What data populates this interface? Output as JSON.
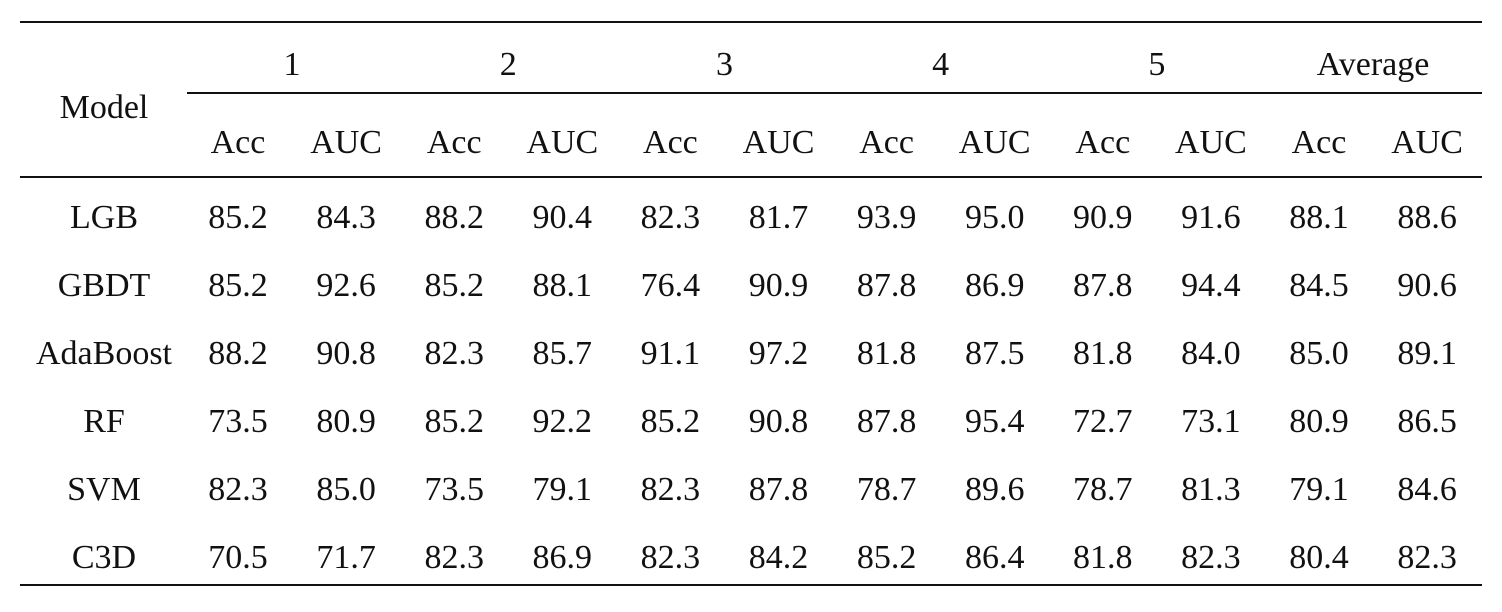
{
  "table": {
    "header": {
      "model": "Model",
      "groups": [
        "1",
        "2",
        "3",
        "4",
        "5",
        "Average"
      ],
      "subheaders": [
        "Acc",
        "AUC",
        "Acc",
        "AUC",
        "Acc",
        "AUC",
        "Acc",
        "AUC",
        "Acc",
        "AUC",
        "Acc",
        "AUC"
      ]
    },
    "rows": [
      {
        "model": "LGB",
        "values": [
          "85.2",
          "84.3",
          "88.2",
          "90.4",
          "82.3",
          "81.7",
          "93.9",
          "95.0",
          "90.9",
          "91.6",
          "88.1",
          "88.6"
        ]
      },
      {
        "model": "GBDT",
        "values": [
          "85.2",
          "92.6",
          "85.2",
          "88.1",
          "76.4",
          "90.9",
          "87.8",
          "86.9",
          "87.8",
          "94.4",
          "84.5",
          "90.6"
        ]
      },
      {
        "model": "AdaBoost",
        "values": [
          "88.2",
          "90.8",
          "82.3",
          "85.7",
          "91.1",
          "97.2",
          "81.8",
          "87.5",
          "81.8",
          "84.0",
          "85.0",
          "89.1"
        ]
      },
      {
        "model": "RF",
        "values": [
          "73.5",
          "80.9",
          "85.2",
          "92.2",
          "85.2",
          "90.8",
          "87.8",
          "95.4",
          "72.7",
          "73.1",
          "80.9",
          "86.5"
        ]
      },
      {
        "model": "SVM",
        "values": [
          "82.3",
          "85.0",
          "73.5",
          "79.1",
          "82.3",
          "87.8",
          "78.7",
          "89.6",
          "78.7",
          "81.3",
          "79.1",
          "84.6"
        ]
      },
      {
        "model": "C3D",
        "values": [
          "70.5",
          "71.7",
          "82.3",
          "86.9",
          "82.3",
          "84.2",
          "85.2",
          "86.4",
          "81.8",
          "82.3",
          "80.4",
          "82.3"
        ]
      }
    ]
  }
}
